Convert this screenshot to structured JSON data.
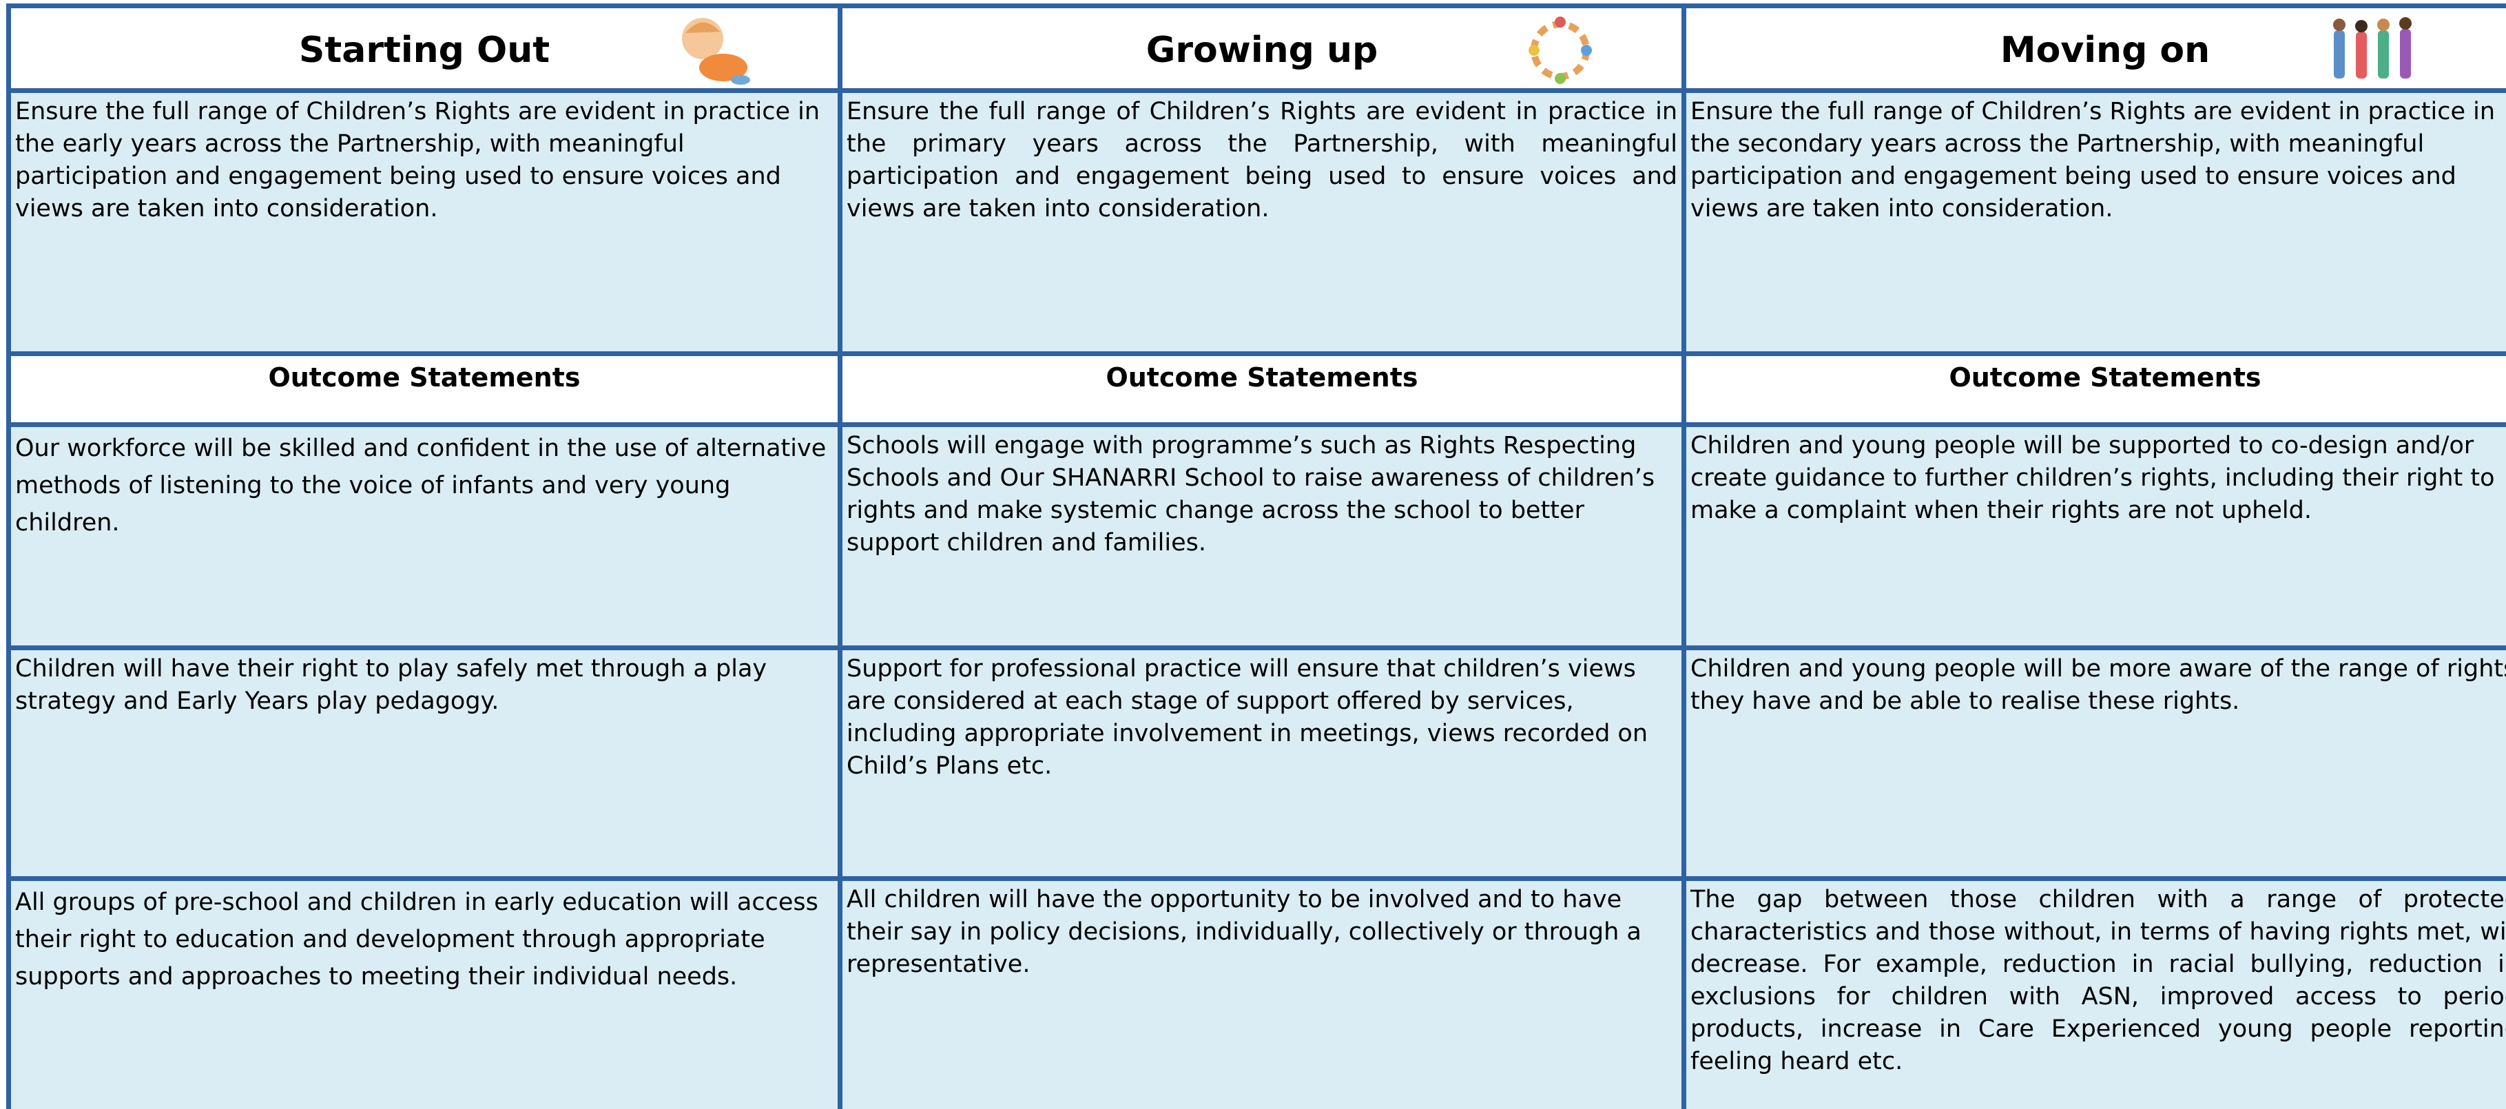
{
  "columns": [
    {
      "title": "Starting Out",
      "intro": "Ensure the full range of Children’s Rights are evident in practice in the early years across the Partnership, with meaningful participation and engagement being used to ensure voices and views are taken into consideration.",
      "outcomes_heading": "Outcome Statements",
      "outcomes": [
        "Our workforce will be skilled and confident in the use of alternative methods of listening to the voice of infants and very young children.",
        "Children will have their right to play safely met through a play strategy and Early Years play pedagogy.",
        "All groups of pre-school and children in early education will access their right to education and development through appropriate supports and approaches to meeting their individual needs."
      ]
    },
    {
      "title": "Growing up",
      "intro": "Ensure the full range of Children’s Rights are evident in practice in the primary years across the Partnership, with meaningful participation and engagement being used to ensure voices and views are taken into consideration.",
      "outcomes_heading": "Outcome Statements",
      "outcomes": [
        "Schools will engage with programme’s such as Rights Respecting Schools and Our SHANARRI School to raise awareness of children’s rights and make systemic change across the school to better support children and families.",
        "Support for professional practice will ensure that children’s views are considered at each stage of support offered by services, including appropriate involvement in meetings, views recorded on Child’s Plans etc.",
        "All children will have the opportunity to be involved and to have their say in policy decisions, individually, collectively or through a representative."
      ]
    },
    {
      "title": "Moving on",
      "intro": "Ensure the full range of Children’s Rights are evident in practice in the secondary years across the Partnership, with meaningful participation and engagement being used to ensure voices and views are taken into consideration.",
      "outcomes_heading": "Outcome Statements",
      "outcomes": [
        "Children and young people will be supported to co-design and/or create guidance to further children’s rights, including their right to make a complaint when their rights are not upheld.",
        "Children and young people will be more aware of the range of rights they have and be able to realise these rights.",
        "The gap between those children with a range of protected characteristics and those without, in terms of having rights met, will decrease. For example, reduction in racial bullying, reduction in exclusions for children with ASN, improved access to period products, increase in Care Experienced young people reporting feeling heard etc."
      ]
    }
  ]
}
